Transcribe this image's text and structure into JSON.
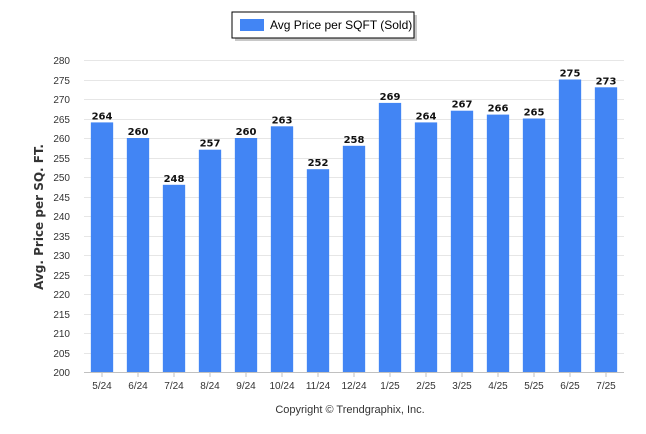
{
  "chart_data": {
    "type": "bar",
    "categories": [
      "5/24",
      "6/24",
      "7/24",
      "8/24",
      "9/24",
      "10/24",
      "11/24",
      "12/24",
      "1/25",
      "2/25",
      "3/25",
      "4/25",
      "5/25",
      "6/25",
      "7/25"
    ],
    "series": [
      {
        "name": "Avg Price per SQFT (Sold)",
        "values": [
          264,
          260,
          248,
          257,
          260,
          263,
          252,
          258,
          269,
          264,
          267,
          266,
          265,
          275,
          273
        ]
      }
    ],
    "ylabel": "Avg. Price per SQ. FT.",
    "xlabel": "",
    "ylim": [
      200,
      280
    ],
    "yticks": [
      200,
      205,
      210,
      215,
      220,
      225,
      230,
      235,
      240,
      245,
      250,
      255,
      260,
      265,
      270,
      275,
      280
    ],
    "grid": true,
    "legend_position": "top-center",
    "data_labels": true,
    "bar_color": "#4285f4"
  },
  "footer": {
    "copyright": "Copyright © Trendgraphix, Inc."
  }
}
